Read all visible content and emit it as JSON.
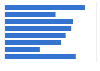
{
  "chart_data": {
    "type": "bar",
    "orientation": "horizontal",
    "categories": [
      null,
      null,
      null,
      null,
      null,
      null,
      null,
      null
    ],
    "values": [
      88,
      56,
      75,
      73,
      67,
      62,
      39,
      78
    ],
    "color": "#3474d0",
    "xlim": [
      0,
      100
    ],
    "xticks": [],
    "grid": false,
    "tick_labels": false
  }
}
